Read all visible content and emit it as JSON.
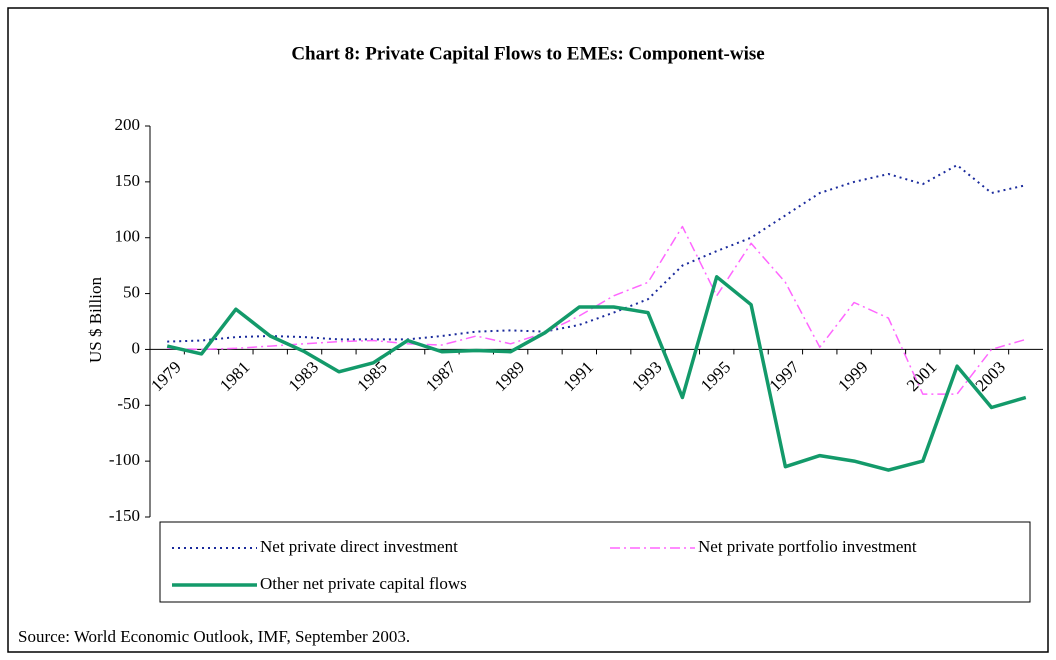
{
  "chart_data": {
    "type": "line",
    "title": "Chart 8: Private Capital Flows to EMEs: Component-wise",
    "y_label": "US $ Billion",
    "source": "Source: World Economic Outlook, IMF, September 2003.",
    "categories": [
      "1979",
      null,
      "1981",
      null,
      "1983",
      null,
      "1985",
      null,
      "1987",
      null,
      "1989",
      null,
      "1991",
      null,
      "1993",
      null,
      "1995",
      null,
      "1997",
      null,
      "1999",
      null,
      "2001",
      null,
      "2003",
      null
    ],
    "series": [
      {
        "name": "Net private direct investment",
        "color": "#1a2a9c",
        "style": "dotted",
        "values": [
          7,
          8,
          11,
          12,
          11,
          9,
          9,
          9,
          12,
          16,
          17,
          16,
          22,
          33,
          45,
          75,
          88,
          100,
          120,
          140,
          150,
          157,
          148,
          165,
          140,
          147
        ]
      },
      {
        "name": "Net private portfolio investment",
        "color": "#ff66ff",
        "style": "dashdot",
        "values": [
          1,
          0,
          1,
          3,
          5,
          7,
          8,
          5,
          4,
          12,
          5,
          15,
          30,
          48,
          60,
          110,
          48,
          95,
          60,
          2,
          42,
          28,
          -40,
          -40,
          0,
          9
        ]
      },
      {
        "name": "Other net private capital flows",
        "color": "#139a6a",
        "style": "solid",
        "values": [
          3,
          -4,
          36,
          12,
          -2,
          -20,
          -12,
          8,
          -2,
          -1,
          -2,
          15,
          38,
          38,
          33,
          -43,
          65,
          40,
          -105,
          -95,
          -100,
          -108,
          -100,
          -15,
          -52,
          -43
        ]
      }
    ],
    "ylim": [
      -150,
      200
    ],
    "yticks": [
      -150,
      -100,
      -50,
      0,
      50,
      100,
      150,
      200
    ]
  }
}
